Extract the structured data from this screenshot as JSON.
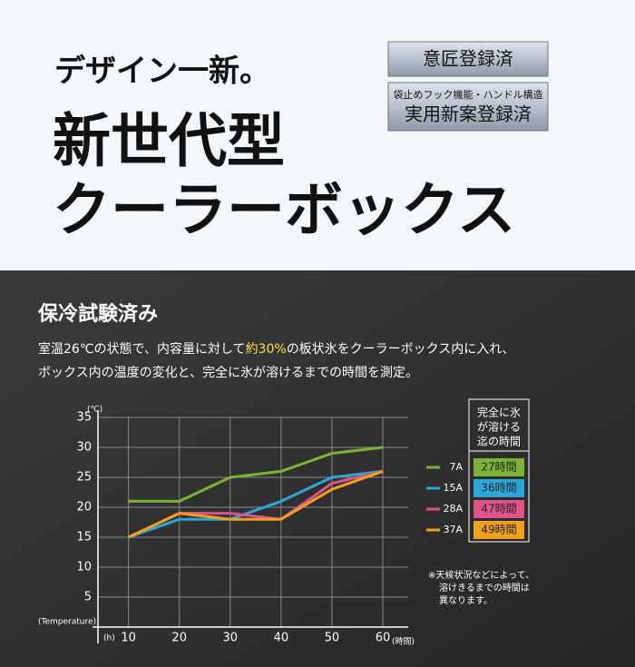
{
  "header": {
    "tagline": "デザイン一新。",
    "title_line1": "新世代型",
    "title_line2": "クーラーボックス",
    "badge1": "意匠登録済",
    "badge2_small": "袋止めフック機能・ハンドル構造",
    "badge2": "実用新案登録済"
  },
  "section": {
    "title": "保冷試験済み",
    "text_before": "室温26℃の状態で、内容量に対して",
    "text_highlight": "約30%",
    "text_after": "の板状氷をクーラーボックス内に入れ、",
    "text_line2": "ボックス内の温度の変化と、完全に氷が溶けるまでの時間を測定。"
  },
  "chart_data": {
    "type": "line",
    "y_unit": "(℃)",
    "y_label": "(Temperature)",
    "x_unit": "(h)",
    "x_label": "(時間)",
    "x": [
      10,
      20,
      30,
      40,
      50,
      60
    ],
    "xlim": [
      4,
      65
    ],
    "xticks": [
      10,
      20,
      30,
      40,
      50,
      60
    ],
    "ylim": [
      0,
      35
    ],
    "yticks": [
      5,
      10,
      15,
      20,
      25,
      30,
      35
    ],
    "grid": true,
    "legend_title": [
      "完全に氷",
      "が溶ける",
      "迄の時間"
    ],
    "series": [
      {
        "name": "7A",
        "color": "#7ab335",
        "values": [
          21,
          21,
          25,
          26,
          29,
          30
        ],
        "time": "27時間"
      },
      {
        "name": "15A",
        "color": "#2aa7d6",
        "values": [
          15,
          18,
          18,
          21,
          25,
          26
        ],
        "time": "36時間"
      },
      {
        "name": "28A",
        "color": "#e0538a",
        "values": [
          15,
          19,
          19,
          18,
          24,
          26
        ],
        "time": "47時間"
      },
      {
        "name": "37A",
        "color": "#f0a020",
        "values": [
          15,
          19,
          18,
          18,
          23,
          26
        ],
        "time": "49時間"
      }
    ],
    "note": [
      "※天候状況などによって、",
      "溶けきるまでの時間は",
      "異なります。"
    ]
  }
}
